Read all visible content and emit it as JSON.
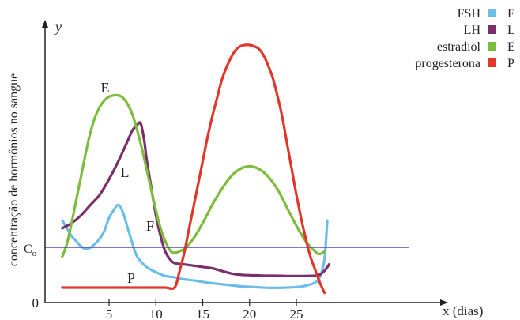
{
  "chart_data": {
    "type": "line",
    "xlabel": "x (dias)",
    "ylabel": "concentração de hormônios no sangue",
    "y_axis_letter": "y",
    "origin_label": "0",
    "xlim": [
      0,
      30
    ],
    "ylim": [
      0,
      100
    ],
    "x_ticks": [
      5,
      10,
      15,
      20,
      25
    ],
    "reference_line": {
      "label": "C",
      "label_subscript": "o",
      "value": 20,
      "color": "#5b4aa6",
      "x_range": [
        0,
        30
      ]
    },
    "legend_placement": "top-right",
    "series": [
      {
        "name": "FSH",
        "code": "F",
        "color": "#6dbde9",
        "x": [
          0,
          0.5,
          1,
          1.5,
          2,
          2.5,
          3,
          3.5,
          4,
          4.5,
          5,
          5.5,
          6,
          6.5,
          7,
          7.5,
          8,
          9,
          10,
          11,
          12,
          13,
          14,
          15,
          16,
          17,
          18,
          19,
          20,
          21,
          22,
          23,
          24,
          25,
          26,
          27,
          27.5,
          28,
          28.3
        ],
        "y": [
          32,
          29,
          26,
          24,
          22,
          21,
          21.5,
          23,
          25,
          28,
          33,
          36,
          38,
          35,
          29,
          23,
          18,
          14,
          12,
          10.5,
          10,
          9.2,
          8.8,
          8.2,
          7.7,
          7.3,
          6.9,
          6.5,
          6.3,
          6.1,
          5.9,
          5.9,
          6,
          6.2,
          6.7,
          8,
          10,
          17,
          32
        ]
      },
      {
        "name": "LH",
        "code": "L",
        "color": "#7a2f6c",
        "x": [
          0,
          1,
          2,
          3,
          4,
          5,
          6,
          7,
          7.5,
          8,
          8.3,
          8.5,
          8.8,
          9,
          9.5,
          10,
          10.5,
          11,
          11.5,
          12,
          13,
          14,
          15,
          16,
          17,
          18,
          19,
          20,
          21,
          22,
          23,
          24,
          25,
          26,
          27,
          27.5,
          28,
          28.5
        ],
        "y": [
          29,
          31,
          34,
          38,
          42,
          48,
          55,
          63,
          67,
          69,
          70,
          68,
          62,
          56,
          45,
          34,
          26,
          20,
          17,
          15.5,
          15,
          14.5,
          14,
          13.5,
          12.5,
          11.5,
          11,
          10.8,
          10.7,
          10.6,
          10.6,
          10.5,
          10.5,
          10.5,
          10.6,
          11,
          12.5,
          15
        ]
      },
      {
        "name": "estradiol",
        "code": "E",
        "color": "#7dbd3b",
        "x": [
          0,
          0.5,
          1,
          1.5,
          2,
          2.5,
          3,
          3.5,
          4,
          4.5,
          5,
          5.5,
          6,
          6.5,
          7,
          7.5,
          8,
          8.5,
          9,
          9.5,
          10,
          10.5,
          11,
          11.5,
          12,
          13,
          14,
          15,
          16,
          17,
          18,
          19,
          20,
          21,
          22,
          23,
          24,
          25,
          26,
          27,
          27.5,
          28
        ],
        "y": [
          18,
          23,
          31,
          40,
          49,
          58,
          66,
          72,
          76,
          78.5,
          80,
          80.5,
          80.5,
          79.5,
          77,
          73,
          67,
          60,
          52,
          44,
          36,
          29,
          24,
          20.5,
          19.5,
          21,
          25,
          31,
          38,
          44,
          49,
          52,
          53,
          52,
          49,
          44,
          37,
          30,
          24,
          20,
          19,
          20
        ]
      },
      {
        "name": "progesterona",
        "code": "P",
        "color": "#e0372a",
        "x": [
          0,
          2,
          4,
          6,
          8,
          10,
          11,
          12,
          12.5,
          13,
          13.5,
          14,
          14.5,
          15,
          15.5,
          16,
          16.5,
          17,
          17.5,
          18,
          18.5,
          19,
          19.5,
          20,
          20.5,
          21,
          21.5,
          22,
          22.5,
          23,
          23.5,
          24,
          24.5,
          25,
          25.5,
          26,
          26.5,
          27,
          27.5,
          28
        ],
        "y": [
          6,
          6,
          6,
          6,
          6,
          6,
          6,
          6,
          12,
          19,
          28,
          37,
          46,
          55,
          64,
          72,
          79,
          86,
          91,
          95,
          98,
          99.5,
          100,
          100,
          99.5,
          98.5,
          96,
          92,
          87,
          80,
          72,
          62,
          52,
          42,
          33,
          25,
          18,
          13,
          8,
          4
        ]
      }
    ]
  }
}
